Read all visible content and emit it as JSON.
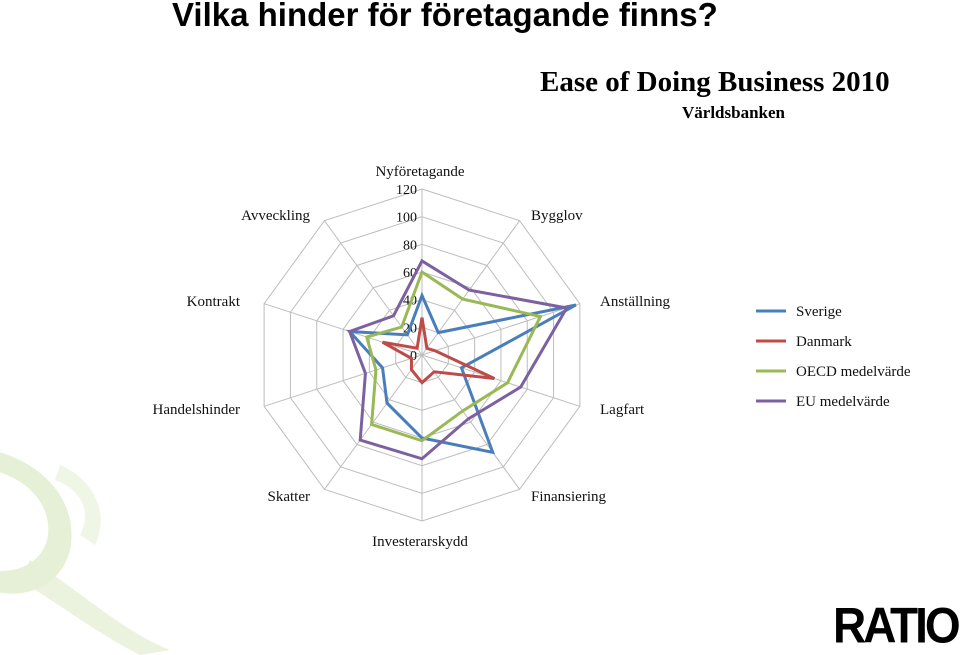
{
  "slide": {
    "title": "Vilka hinder för företagande finns?"
  },
  "chart_data": {
    "type": "radar",
    "title": "Ease of Doing Business 2010",
    "subtitle": "Världsbanken",
    "categories": [
      "Nyföretagande",
      "Bygglov",
      "Anställning",
      "Lagfart",
      "Finansiering",
      "Investerarskydd",
      "Skatter",
      "Handelshinder",
      "Kontrakt",
      "Avveckling"
    ],
    "rlim": [
      0,
      120
    ],
    "ticks": [
      0,
      20,
      40,
      60,
      80,
      100,
      120
    ],
    "grid": true,
    "legend_position": "right",
    "series": [
      {
        "name": "Sverige",
        "color": "#4a7ebb",
        "values": [
          43,
          20,
          117,
          30,
          87,
          60,
          43,
          30,
          55,
          18
        ]
      },
      {
        "name": "Danmark",
        "color": "#be4b48",
        "values": [
          27,
          6,
          10,
          55,
          15,
          20,
          13,
          8,
          30,
          6
        ]
      },
      {
        "name": "OECD medelvärde",
        "color": "#98b954",
        "values": [
          60,
          50,
          90,
          65,
          50,
          62,
          62,
          35,
          42,
          25
        ]
      },
      {
        "name": "EU medelvärde",
        "color": "#7d60a0",
        "values": [
          68,
          58,
          110,
          75,
          57,
          75,
          76,
          43,
          55,
          35
        ]
      }
    ]
  },
  "logo": {
    "text": "RATIO"
  }
}
